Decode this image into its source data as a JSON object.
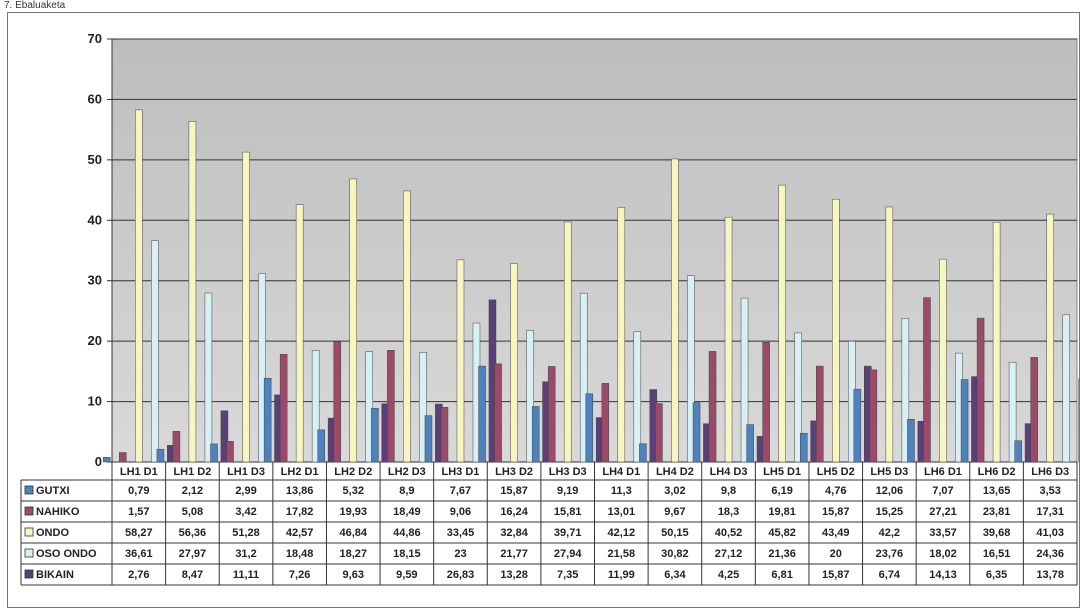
{
  "page": {
    "title": "7. Ebaluaketa"
  },
  "chart_data": {
    "type": "bar",
    "ylim": [
      0,
      70
    ],
    "yticks": [
      0,
      10,
      20,
      30,
      40,
      50,
      60,
      70
    ],
    "grid": true,
    "categories": [
      "LH1 D1",
      "LH1 D2",
      "LH1 D3",
      "LH2 D1",
      "LH2 D2",
      "LH2 D3",
      "LH3 D1",
      "LH3 D2",
      "LH3 D3",
      "LH4 D1",
      "LH4 D2",
      "LH4 D3",
      "LH5 D1",
      "LH5 D2",
      "LH5 D3",
      "LH6 D1",
      "LH6 D2",
      "LH6 D3"
    ],
    "series": [
      {
        "name": "GUTXI",
        "color": "#4f81bd",
        "values": [
          0.79,
          2.12,
          2.99,
          13.86,
          5.32,
          8.9,
          7.67,
          15.87,
          9.19,
          11.3,
          3.02,
          9.8,
          6.19,
          4.76,
          12.06,
          7.07,
          13.65,
          3.53
        ],
        "labels": [
          "0,79",
          "2,12",
          "2,99",
          "13,86",
          "5,32",
          "8,9",
          "7,67",
          "15,87",
          "9,19",
          "11,3",
          "3,02",
          "9,8",
          "6,19",
          "4,76",
          "12,06",
          "7,07",
          "13,65",
          "3,53"
        ]
      },
      {
        "name": "NAHIKO",
        "color": "#9b4a6a",
        "values": [
          1.57,
          5.08,
          3.42,
          17.82,
          19.93,
          18.49,
          9.06,
          16.24,
          15.81,
          13.01,
          9.67,
          18.3,
          19.81,
          15.87,
          15.25,
          27.21,
          23.81,
          17.31
        ],
        "labels": [
          "1,57",
          "5,08",
          "3,42",
          "17,82",
          "19,93",
          "18,49",
          "9,06",
          "16,24",
          "15,81",
          "13,01",
          "9,67",
          "18,3",
          "19,81",
          "15,87",
          "15,25",
          "27,21",
          "23,81",
          "17,31"
        ]
      },
      {
        "name": "ONDO",
        "color": "#f8f6c0",
        "values": [
          58.27,
          56.36,
          51.28,
          42.57,
          46.84,
          44.86,
          33.45,
          32.84,
          39.71,
          42.12,
          50.15,
          40.52,
          45.82,
          43.49,
          42.2,
          33.57,
          39.68,
          41.03
        ],
        "labels": [
          "58,27",
          "56,36",
          "51,28",
          "42,57",
          "46,84",
          "44,86",
          "33,45",
          "32,84",
          "39,71",
          "42,12",
          "50,15",
          "40,52",
          "45,82",
          "43,49",
          "42,2",
          "33,57",
          "39,68",
          "41,03"
        ]
      },
      {
        "name": "OSO ONDO",
        "color": "#d8f0f4",
        "values": [
          36.61,
          27.97,
          31.2,
          18.48,
          18.27,
          18.15,
          23,
          21.77,
          27.94,
          21.58,
          30.82,
          27.12,
          21.36,
          20,
          23.76,
          18.02,
          16.51,
          24.36
        ],
        "labels": [
          "36,61",
          "27,97",
          "31,2",
          "18,48",
          "18,27",
          "18,15",
          "23",
          "21,77",
          "27,94",
          "21,58",
          "30,82",
          "27,12",
          "21,36",
          "20",
          "23,76",
          "18,02",
          "16,51",
          "24,36"
        ]
      },
      {
        "name": "BIKAIN",
        "color": "#5a3f78",
        "values": [
          2.76,
          8.47,
          11.11,
          7.26,
          9.63,
          9.59,
          26.83,
          13.28,
          7.35,
          11.99,
          6.34,
          4.25,
          6.81,
          15.87,
          6.74,
          14.13,
          6.35,
          13.78
        ],
        "labels": [
          "2,76",
          "8,47",
          "11,11",
          "7,26",
          "9,63",
          "9,59",
          "26,83",
          "13,28",
          "7,35",
          "11,99",
          "6,34",
          "4,25",
          "6,81",
          "15,87",
          "6,74",
          "14,13",
          "6,35",
          "13,78"
        ]
      }
    ]
  }
}
